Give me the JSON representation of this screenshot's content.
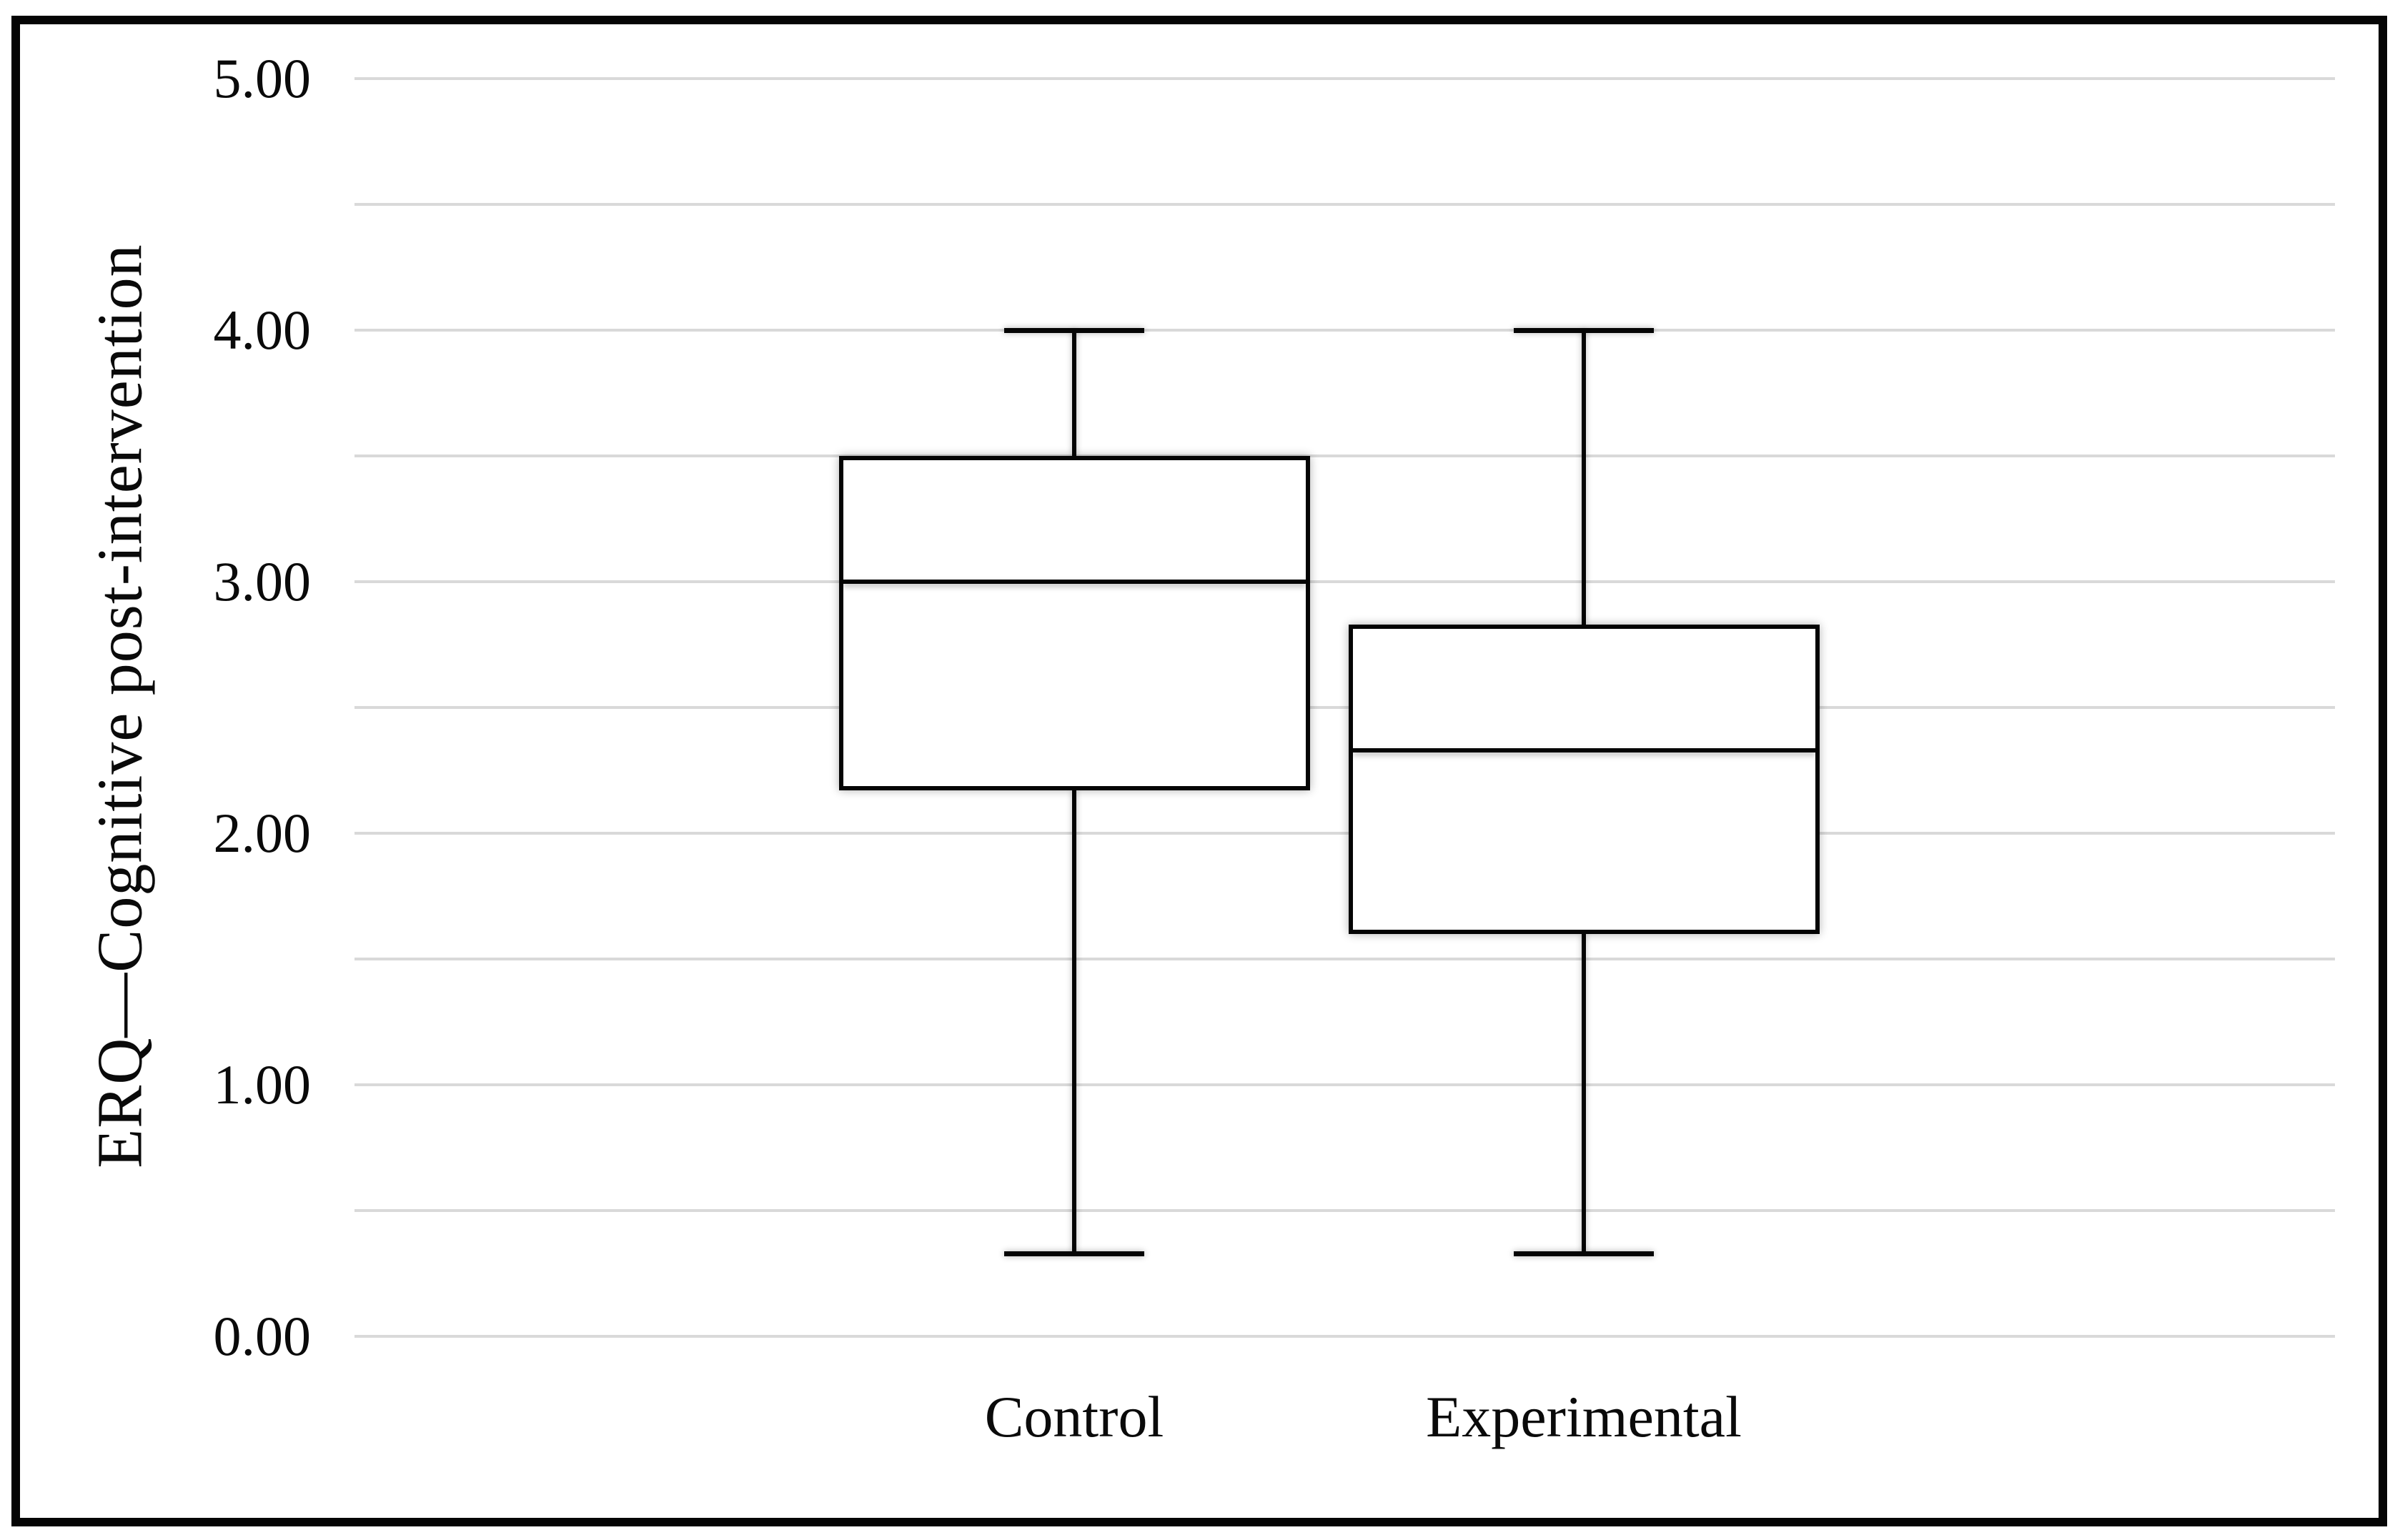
{
  "chart_data": {
    "type": "boxplot",
    "title": "",
    "ylabel": "ERQ—Cognitive post-intervention",
    "xlabel": "",
    "categories": [
      "Control",
      "Experimental"
    ],
    "series": [
      {
        "name": "Control",
        "whisker_low": 0.33,
        "q1": 2.17,
        "median": 3.0,
        "q3": 3.5,
        "whisker_high": 4.0
      },
      {
        "name": "Experimental",
        "whisker_low": 0.33,
        "q1": 1.6,
        "median": 2.33,
        "q3": 2.83,
        "whisker_high": 4.0
      }
    ],
    "ylim": [
      0,
      5
    ],
    "yticks": [
      {
        "value": 5,
        "label": "5.00"
      },
      {
        "value": 4,
        "label": "4.00"
      },
      {
        "value": 3,
        "label": "3.00"
      },
      {
        "value": 2,
        "label": "2.00"
      },
      {
        "value": 1,
        "label": "1.00"
      },
      {
        "value": 0,
        "label": "0.00"
      }
    ],
    "gridline_step": 0.5,
    "grid": "horizontal-only",
    "legend": "none",
    "colors": {
      "gridline": "#d9d9d9",
      "stroke": "#050505",
      "text": "#0a0a0a",
      "background": "#ffffff",
      "border": "#050505"
    }
  }
}
